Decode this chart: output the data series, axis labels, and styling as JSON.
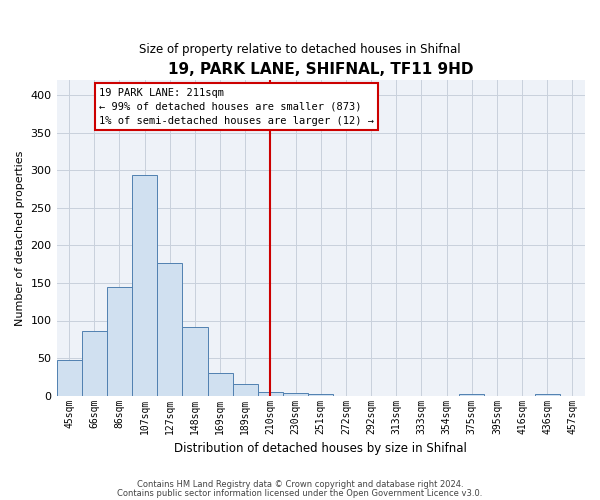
{
  "title": "19, PARK LANE, SHIFNAL, TF11 9HD",
  "subtitle": "Size of property relative to detached houses in Shifnal",
  "xlabel": "Distribution of detached houses by size in Shifnal",
  "ylabel": "Number of detached properties",
  "bin_labels": [
    "45sqm",
    "66sqm",
    "86sqm",
    "107sqm",
    "127sqm",
    "148sqm",
    "169sqm",
    "189sqm",
    "210sqm",
    "230sqm",
    "251sqm",
    "272sqm",
    "292sqm",
    "313sqm",
    "333sqm",
    "354sqm",
    "375sqm",
    "395sqm",
    "416sqm",
    "436sqm",
    "457sqm"
  ],
  "bar_heights": [
    47,
    86,
    144,
    293,
    176,
    91,
    30,
    15,
    5,
    4,
    2,
    0,
    0,
    0,
    0,
    0,
    2,
    0,
    0,
    2,
    0
  ],
  "bar_color": "#d0e0f0",
  "bar_edge_color": "#5080b0",
  "ylim": [
    0,
    420
  ],
  "yticks": [
    0,
    50,
    100,
    150,
    200,
    250,
    300,
    350,
    400
  ],
  "vline_x_index": 8,
  "vline_color": "#cc0000",
  "annotation_title": "19 PARK LANE: 211sqm",
  "annotation_line1": "← 99% of detached houses are smaller (873)",
  "annotation_line2": "1% of semi-detached houses are larger (12) →",
  "annotation_box_color": "#ffffff",
  "annotation_box_edge": "#cc0000",
  "footnote1": "Contains HM Land Registry data © Crown copyright and database right 2024.",
  "footnote2": "Contains public sector information licensed under the Open Government Licence v3.0.",
  "background_color": "#ffffff",
  "plot_bg_color": "#eef2f8",
  "grid_color": "#c8d0dc"
}
